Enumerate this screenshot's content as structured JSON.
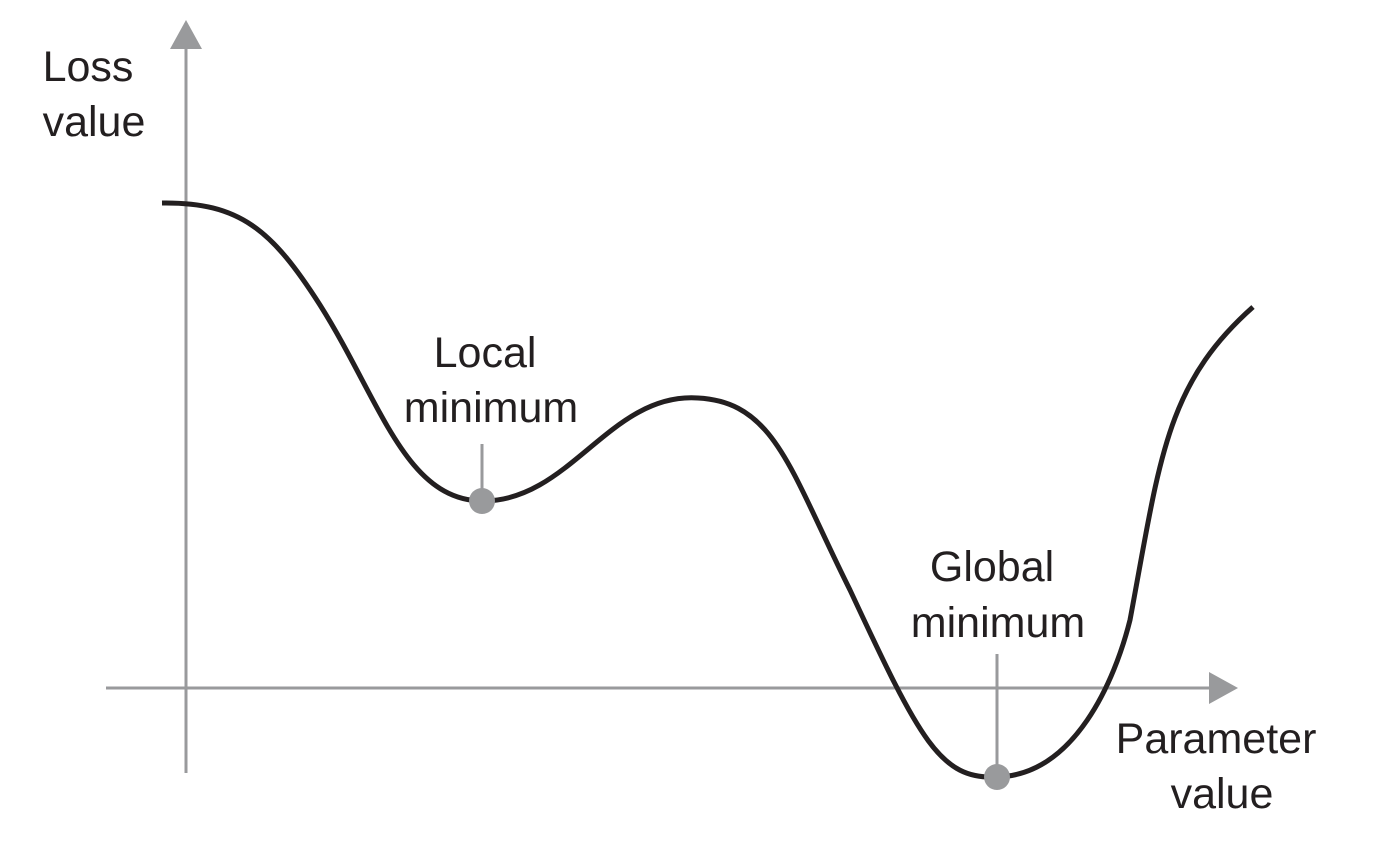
{
  "labels": {
    "y_axis": [
      "Loss",
      "value"
    ],
    "x_axis": [
      "Parameter",
      "value"
    ],
    "local_minimum": [
      "Local",
      "minimum"
    ],
    "global_minimum": [
      "Global",
      "minimum"
    ]
  },
  "colors": {
    "axis": "#999a9c",
    "curve": "#231f20",
    "marker": "#999a9c",
    "text": "#231f20",
    "background": "#ffffff"
  }
}
